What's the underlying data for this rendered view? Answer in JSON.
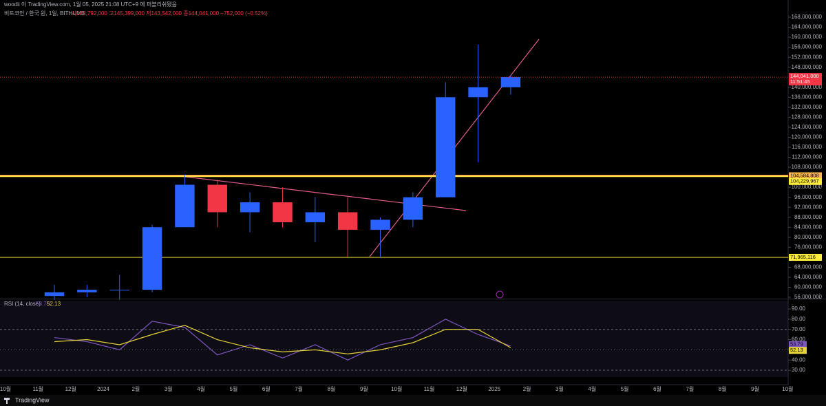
{
  "header": {
    "publisher": "woodii 이 TradingView.com, 1월 05, 2025 21:08 UTC+9 에 퍼블리쉬됐음",
    "symbol": "비트코인 / 한국 원, 1일, BITHUMB",
    "ohlc": "시144,792,000 고145,399,000 저143,542,000 종144,041,000 −752,000 (−0.52%)"
  },
  "footer": "TradingView",
  "chart_data": [
    {
      "type": "candlestick",
      "up_color": "#2962ff",
      "down_color": "#f23645",
      "categories": [
        "10월",
        "11월",
        "12월",
        "2024",
        "2월",
        "3월",
        "4월",
        "5월",
        "6월",
        "7월",
        "8월",
        "9월",
        "10월",
        "11월",
        "12월",
        "2025",
        "2월",
        "3월",
        "4월",
        "5월",
        "6월",
        "7월",
        "8월",
        "9월",
        "10월"
      ],
      "open": [
        null,
        56500000,
        58000000,
        59000000,
        59000000,
        84000000,
        101000000,
        90000000,
        94000000,
        86000000,
        90000000,
        83000000,
        87000000,
        96000000,
        136000000,
        140000000,
        null,
        null,
        null,
        null,
        null,
        null,
        null,
        null,
        null
      ],
      "high": [
        null,
        61000000,
        61000000,
        65000000,
        85000000,
        105000000,
        103000000,
        98000000,
        100000000,
        96000000,
        96000000,
        88000000,
        98000000,
        142000000,
        157000000,
        145000000,
        null,
        null,
        null,
        null,
        null,
        null,
        null,
        null,
        null
      ],
      "low": [
        null,
        55000000,
        56000000,
        55000000,
        58000000,
        84000000,
        84000000,
        82000000,
        84000000,
        78000000,
        72000000,
        72000000,
        84000000,
        96000000,
        110000000,
        137000000,
        null,
        null,
        null,
        null,
        null,
        null,
        null,
        null,
        null
      ],
      "close": [
        null,
        58000000,
        59000000,
        59000000,
        84000000,
        101000000,
        90000000,
        94000000,
        86000000,
        90000000,
        83000000,
        87000000,
        96000000,
        136000000,
        140000000,
        144041000,
        null,
        null,
        null,
        null,
        null,
        null,
        null,
        null,
        null
      ],
      "ylim": [
        56000000,
        174880000
      ],
      "yticks": [
        {
          "value": 56000000,
          "label": "56,000,000"
        },
        {
          "value": 60000000,
          "label": "60,000,000"
        },
        {
          "value": 64000000,
          "label": "64,000,000"
        },
        {
          "value": 68000000,
          "label": "68,000,000"
        },
        {
          "value": 72000000,
          "label": "72,000,000"
        },
        {
          "value": 76000000,
          "label": "76,000,000"
        },
        {
          "value": 80000000,
          "label": "80,000,000"
        },
        {
          "value": 84000000,
          "label": "84,000,000"
        },
        {
          "value": 88000000,
          "label": "88,000,000"
        },
        {
          "value": 92000000,
          "label": "92,000,000"
        },
        {
          "value": 96000000,
          "label": "96,000,000"
        },
        {
          "value": 100000000,
          "label": "100,000,000"
        },
        {
          "value": 108000000,
          "label": "108,000,000"
        },
        {
          "value": 112000000,
          "label": "112,000,000"
        },
        {
          "value": 116000000,
          "label": "116,000,000"
        },
        {
          "value": 120000000,
          "label": "120,000,000"
        },
        {
          "value": 124000000,
          "label": "124,000,000"
        },
        {
          "value": 128000000,
          "label": "128,000,000"
        },
        {
          "value": 132000000,
          "label": "132,000,000"
        },
        {
          "value": 136000000,
          "label": "136,000,000"
        },
        {
          "value": 140000000,
          "label": "140,000,000"
        },
        {
          "value": 148000000,
          "label": "148,000,000"
        },
        {
          "value": 152000000,
          "label": "152,000,000"
        },
        {
          "value": 156000000,
          "label": "156,000,000"
        },
        {
          "value": 160000000,
          "label": "160,000,000"
        },
        {
          "value": 164000000,
          "label": "164,000,000"
        },
        {
          "value": 168000000,
          "label": "168,000,000"
        }
      ],
      "levels": [
        {
          "value": 104584808,
          "label": "104,584,808",
          "color": "#ffb74d"
        },
        {
          "value": 104229967,
          "label": "104,229,967",
          "color": "#ffeb3b"
        },
        {
          "value": 71965116,
          "label": "71,965,116",
          "color": "#ffeb3b"
        }
      ],
      "last": {
        "value": 144041000,
        "label": "144,041,000",
        "countdown": "11:51:45"
      }
    },
    {
      "type": "line",
      "title": "RSI (14, close)",
      "series": [
        {
          "color": "#7e57c2",
          "values": [
            null,
            62,
            58,
            50,
            78,
            72,
            45,
            55,
            42,
            55,
            40,
            55,
            62,
            80,
            65,
            53.79,
            null,
            null,
            null,
            null,
            null,
            null,
            null,
            null,
            null
          ],
          "value_labels_last": "53.79"
        },
        {
          "color": "#e6d33a",
          "values": [
            null,
            58,
            60,
            55,
            65,
            74,
            60,
            52,
            48,
            50,
            46,
            50,
            57,
            70,
            70,
            52.13,
            null,
            null,
            null,
            null,
            null,
            null,
            null,
            null,
            null
          ],
          "value_labels_last": "52.13"
        }
      ],
      "ylim": [
        23.3,
        98.1
      ],
      "yticks": [
        {
          "value": 30,
          "label": "30.00"
        },
        {
          "value": 40,
          "label": "40.00"
        },
        {
          "value": 50,
          "label": "50.00"
        },
        {
          "value": 60,
          "label": "60.00"
        },
        {
          "value": 70,
          "label": "70.00"
        },
        {
          "value": 80,
          "label": "80.00"
        },
        {
          "value": 90,
          "label": "90.00"
        }
      ]
    }
  ]
}
